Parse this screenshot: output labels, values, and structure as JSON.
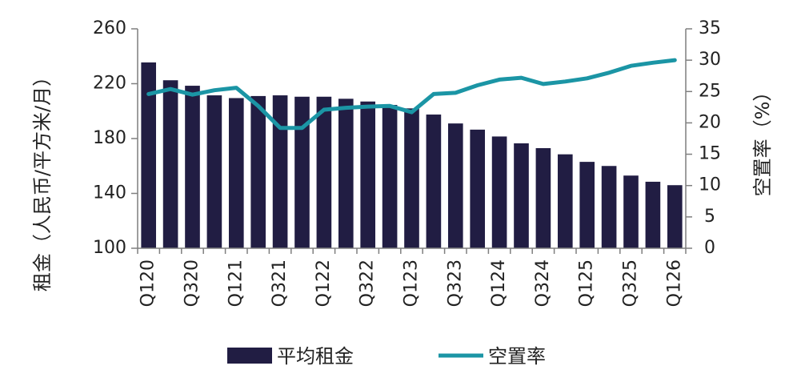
{
  "chart_data": {
    "type": "bar+line",
    "categories": [
      "Q120",
      "Q220",
      "Q320",
      "Q420",
      "Q121",
      "Q221",
      "Q321",
      "Q421",
      "Q122",
      "Q222",
      "Q322",
      "Q422",
      "Q123",
      "Q223",
      "Q323",
      "Q423",
      "Q124",
      "Q224",
      "Q324",
      "Q424",
      "Q125",
      "Q225",
      "Q325",
      "Q425",
      "Q126"
    ],
    "x_tick_labels": [
      "Q120",
      "Q320",
      "Q121",
      "Q321",
      "Q122",
      "Q322",
      "Q123",
      "Q323",
      "Q124",
      "Q324",
      "Q125",
      "Q325",
      "Q126"
    ],
    "series": [
      {
        "name": "平均租金",
        "type": "bar",
        "axis": "left",
        "color": "#211d43",
        "values": [
          235.5,
          222.5,
          218.5,
          211.5,
          209.5,
          211,
          211.5,
          210.5,
          210.5,
          209,
          207,
          204.5,
          202,
          197.5,
          191,
          186.5,
          181.5,
          176.5,
          173,
          168.5,
          163,
          160,
          153,
          148.5,
          146
        ]
      },
      {
        "name": "空置率",
        "type": "line",
        "axis": "right",
        "color": "#1b95a5",
        "values": [
          24.6,
          25.4,
          24.5,
          25.2,
          25.6,
          22.7,
          19.2,
          19.2,
          22.1,
          22.4,
          22.6,
          22.7,
          21.7,
          24.6,
          24.8,
          26.0,
          26.9,
          27.2,
          26.2,
          26.6,
          27.1,
          28.0,
          29.1,
          29.6,
          30.0
        ]
      }
    ],
    "y_left": {
      "title": "租金（人民币/平方米/月）",
      "ylim": [
        100,
        260
      ],
      "ticks": [
        "100",
        "140",
        "180",
        "220",
        "260"
      ],
      "tick_values": [
        100,
        140,
        180,
        220,
        260
      ]
    },
    "y_right": {
      "title": "空置率（%）",
      "ylim": [
        0,
        35
      ],
      "ticks": [
        "0",
        "5",
        "10",
        "15",
        "20",
        "25",
        "30",
        "35"
      ],
      "tick_values": [
        0,
        5,
        10,
        15,
        20,
        25,
        30,
        35
      ]
    },
    "grid": false,
    "legend_position": "bottom"
  }
}
